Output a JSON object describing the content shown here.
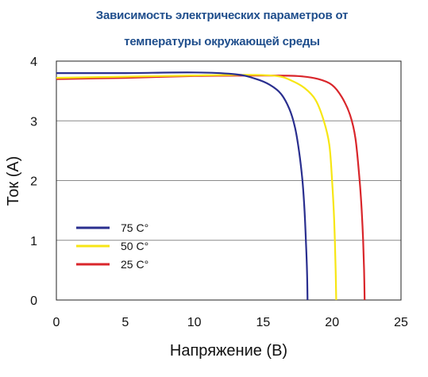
{
  "chart_data": {
    "type": "line",
    "title_line1": "Зависимость электрических параметров от",
    "title_line2": "температуры окружающей среды",
    "xlabel": "Напряжение (В)",
    "ylabel": "Ток (А)",
    "xlim": [
      0,
      25
    ],
    "ylim": [
      0,
      4
    ],
    "xticks": [
      "0",
      "5",
      "10",
      "15",
      "20",
      "25"
    ],
    "yticks": [
      "0",
      "1",
      "2",
      "3",
      "4"
    ],
    "grid": "horizontal",
    "legend_position": "lower-left",
    "series": [
      {
        "name": "75 C°",
        "color": "#2a2f8f",
        "points": [
          [
            0,
            3.8
          ],
          [
            5,
            3.8
          ],
          [
            10,
            3.81
          ],
          [
            13,
            3.78
          ],
          [
            14.5,
            3.7
          ],
          [
            15.5,
            3.6
          ],
          [
            16.3,
            3.45
          ],
          [
            16.9,
            3.2
          ],
          [
            17.3,
            2.9
          ],
          [
            17.6,
            2.5
          ],
          [
            17.85,
            2.0
          ],
          [
            18.0,
            1.5
          ],
          [
            18.1,
            1.0
          ],
          [
            18.18,
            0.5
          ],
          [
            18.22,
            0
          ]
        ]
      },
      {
        "name": "50 C°",
        "color": "#f7e614",
        "points": [
          [
            0,
            3.72
          ],
          [
            5,
            3.74
          ],
          [
            10,
            3.76
          ],
          [
            14,
            3.77
          ],
          [
            16,
            3.75
          ],
          [
            17,
            3.68
          ],
          [
            18,
            3.55
          ],
          [
            18.8,
            3.35
          ],
          [
            19.4,
            3.0
          ],
          [
            19.8,
            2.6
          ],
          [
            20.0,
            2.0
          ],
          [
            20.12,
            1.5
          ],
          [
            20.2,
            1.0
          ],
          [
            20.26,
            0.5
          ],
          [
            20.3,
            0
          ]
        ]
      },
      {
        "name": "25 C°",
        "color": "#d9262b",
        "points": [
          [
            0,
            3.7
          ],
          [
            5,
            3.72
          ],
          [
            10,
            3.75
          ],
          [
            15,
            3.76
          ],
          [
            17.5,
            3.75
          ],
          [
            19,
            3.7
          ],
          [
            20,
            3.6
          ],
          [
            20.7,
            3.4
          ],
          [
            21.3,
            3.1
          ],
          [
            21.7,
            2.7
          ],
          [
            22.0,
            2.0
          ],
          [
            22.15,
            1.5
          ],
          [
            22.25,
            1.0
          ],
          [
            22.32,
            0.5
          ],
          [
            22.36,
            0
          ]
        ]
      }
    ]
  }
}
